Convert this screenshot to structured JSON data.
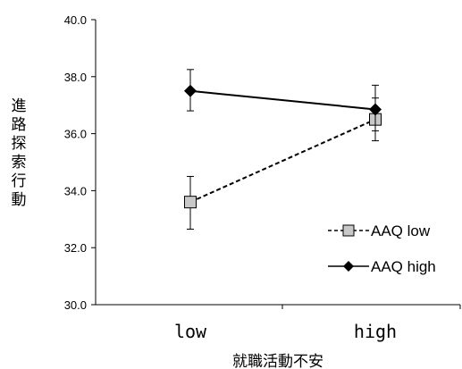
{
  "chart_data": {
    "type": "line",
    "categories": [
      "low",
      "high"
    ],
    "xlabel": "就職活動不安",
    "ylabel": "進路探索行動",
    "ylim": [
      30.0,
      40.0
    ],
    "yticks": [
      "30.0",
      "32.0",
      "34.0",
      "36.0",
      "38.0",
      "40.0"
    ],
    "grid": false,
    "legend_position": "right",
    "series": [
      {
        "name": "AAQ low",
        "values": [
          33.6,
          36.5
        ],
        "error_low": [
          32.65,
          35.75
        ],
        "error_high": [
          34.5,
          37.25
        ],
        "marker": "square",
        "line_style": "dashed",
        "marker_color": "#c8c8c8"
      },
      {
        "name": "AAQ high",
        "values": [
          37.5,
          36.85
        ],
        "error_low": [
          36.8,
          36.1
        ],
        "error_high": [
          38.25,
          37.7
        ],
        "marker": "diamond",
        "line_style": "solid",
        "marker_color": "#000000"
      }
    ]
  }
}
